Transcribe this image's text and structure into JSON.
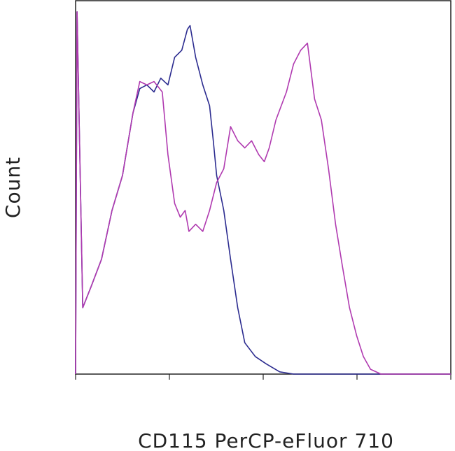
{
  "chart_data": {
    "type": "line",
    "x_label": "CD115 PerCP-eFluor 710",
    "y_label": "Count",
    "xlim": [
      0,
      100
    ],
    "ylim": [
      0,
      100
    ],
    "xticks": [
      0,
      25,
      50,
      75,
      100
    ],
    "grid": false,
    "series": [
      {
        "color": "#2b2b8f",
        "x": [
          0,
          0.4,
          1.9,
          4.1,
          6.9,
          9.7,
          12.5,
          15.3,
          17.1,
          19.0,
          20.9,
          22.7,
          24.6,
          26.4,
          28.3,
          29.8,
          30.5,
          32.0,
          33.9,
          35.7,
          36.7,
          37.6,
          39.5,
          41.3,
          43.2,
          45.1,
          47.9,
          50.7,
          54.4,
          58.1,
          100
        ],
        "values": [
          0,
          97.2,
          17.8,
          23.4,
          30.8,
          43.9,
          53.3,
          70.1,
          76.6,
          77.6,
          75.7,
          79.4,
          77.6,
          85.0,
          86.9,
          92.5,
          93.5,
          85.0,
          77.6,
          72.0,
          62.6,
          53.3,
          43.9,
          30.8,
          17.8,
          8.4,
          4.7,
          2.8,
          0.6,
          0,
          0
        ]
      },
      {
        "color": "#b03ab0",
        "x": [
          0,
          0.4,
          1.9,
          4.1,
          6.9,
          9.7,
          12.5,
          15.3,
          17.1,
          19.0,
          20.9,
          23.1,
          24.6,
          26.4,
          27.9,
          29.2,
          30.2,
          32.0,
          33.9,
          35.7,
          37.6,
          39.5,
          41.3,
          43.2,
          45.1,
          46.9,
          48.8,
          50.3,
          51.6,
          53.4,
          56.2,
          58.1,
          60.0,
          61.8,
          63.7,
          65.5,
          67.4,
          69.3,
          71.1,
          73.0,
          74.9,
          76.7,
          78.6,
          81.4,
          100
        ],
        "values": [
          0,
          97.2,
          17.8,
          23.4,
          30.8,
          43.9,
          53.3,
          70.1,
          78.5,
          77.6,
          78.5,
          75.7,
          58.9,
          45.8,
          42.1,
          43.9,
          38.3,
          40.2,
          38.3,
          43.9,
          51.4,
          55.1,
          66.4,
          62.6,
          60.7,
          62.6,
          58.9,
          57.0,
          60.7,
          68.2,
          75.7,
          83.2,
          86.9,
          88.8,
          73.8,
          68.2,
          55.1,
          40.2,
          29.0,
          17.8,
          10.3,
          4.7,
          1.3,
          0,
          0
        ]
      }
    ]
  }
}
